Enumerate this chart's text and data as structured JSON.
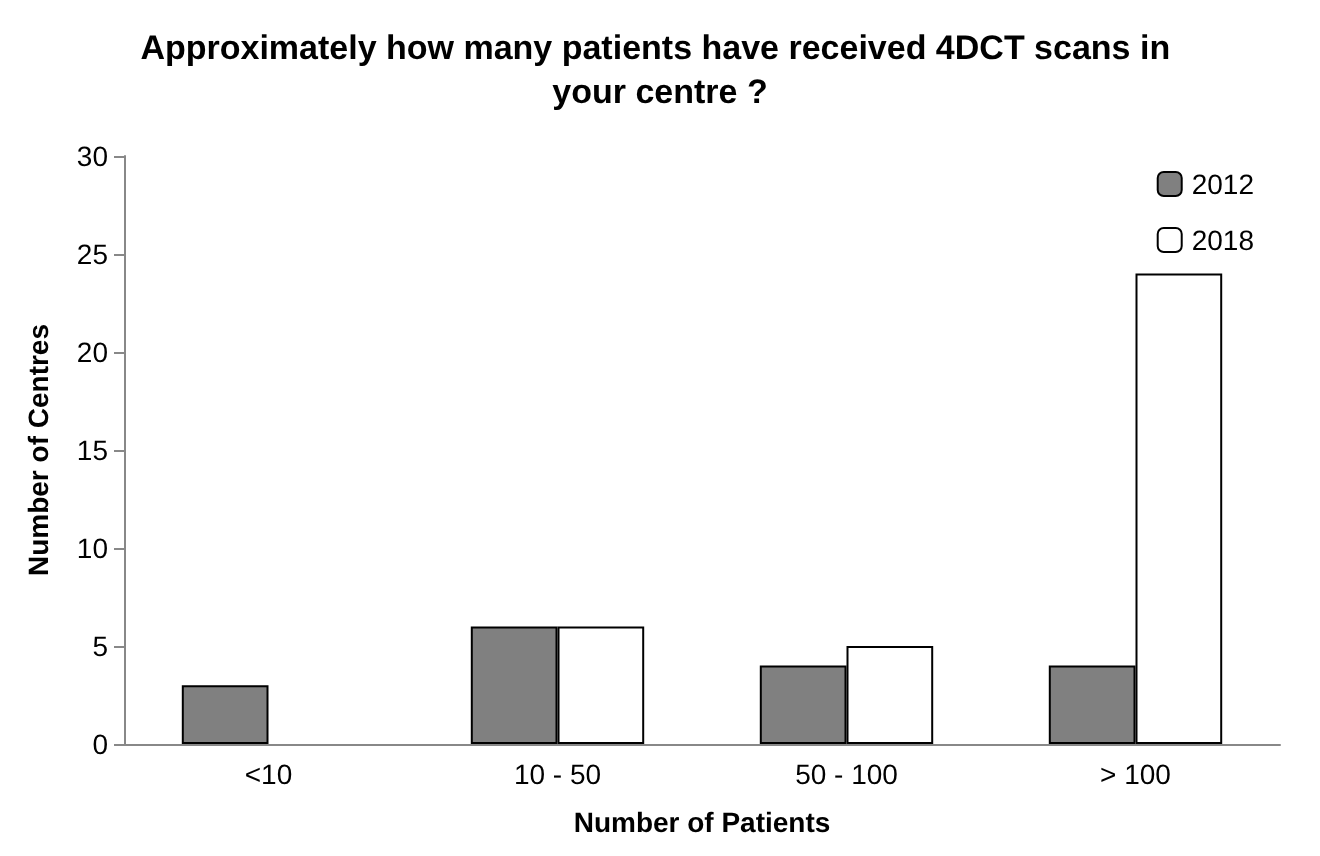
{
  "chart_data": {
    "type": "bar",
    "title": "Approximately how many patients have received 4DCT scans in your centre ?",
    "xlabel": "Number of Patients",
    "ylabel": "Number of Centres",
    "categories": [
      "<10",
      "10 - 50",
      "50 - 100",
      "> 100"
    ],
    "series": [
      {
        "name": "2012",
        "color": "#808080",
        "values": [
          3,
          6,
          4,
          4
        ]
      },
      {
        "name": "2018",
        "color": "#ffffff",
        "values": [
          null,
          6,
          5,
          24
        ]
      }
    ],
    "ylim": [
      0,
      30
    ],
    "yticks": [
      0,
      5,
      10,
      15,
      20,
      25,
      30
    ],
    "grid": false,
    "legend": "top right"
  }
}
